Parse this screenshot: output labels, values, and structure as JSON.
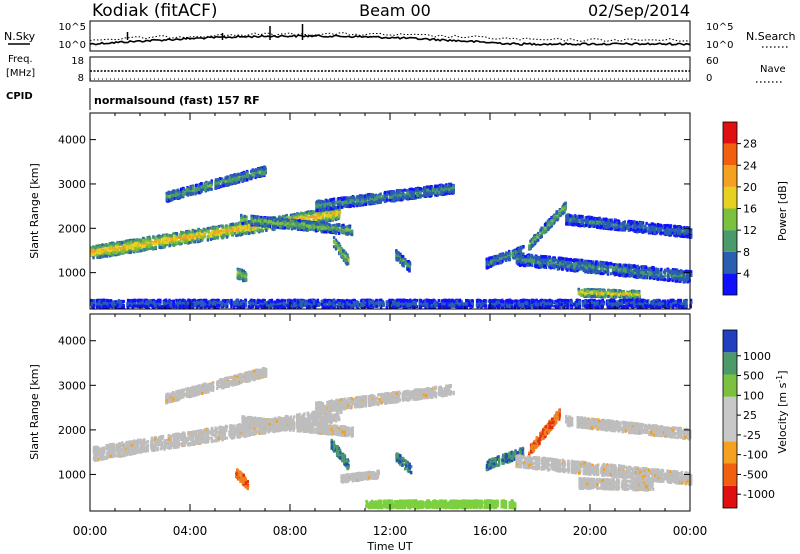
{
  "header": {
    "station": "Kodiak (fitACF)",
    "beam": "Beam 00",
    "date": "02/Sep/2014"
  },
  "noise_strip": {
    "left_label": "N.Sky",
    "right_label": "N.Search",
    "left_ticks": [
      "10^5",
      "10^0"
    ],
    "right_ticks": [
      "10^5",
      "10^0"
    ]
  },
  "freq_strip": {
    "left_label_1": "Freq.",
    "left_label_2": "[MHz]",
    "right_label": "Nave",
    "left_ticks": [
      "18",
      "8"
    ],
    "right_ticks": [
      "60",
      "0"
    ]
  },
  "cpid_strip": {
    "label": "CPID",
    "text": "normalsound (fast) 157 RF"
  },
  "colors": {
    "power_scale": [
      "#1010ff",
      "#2a5fb0",
      "#4a9a6a",
      "#7cc040",
      "#e8d020",
      "#f4a020",
      "#f06010",
      "#e01010"
    ],
    "velocity_scale": [
      "#e01010",
      "#f06010",
      "#f4a020",
      "#c8c8c8",
      "#c8c8c8",
      "#7cc040",
      "#4a9a6a",
      "#2040c0"
    ],
    "ground_scatter": "#bdbdbd"
  },
  "chart_data": [
    {
      "type": "heatmap",
      "panel": "power",
      "ylabel": "Slant Range [km]",
      "xlabel": "Time UT",
      "x_ticks": [
        "00:00",
        "04:00",
        "08:00",
        "12:00",
        "16:00",
        "20:00",
        "00:00"
      ],
      "x_range_hours": [
        0,
        24
      ],
      "y_ticks": [
        1000,
        2000,
        3000,
        4000
      ],
      "ylim": [
        180,
        4600
      ],
      "colorbar_label": "Power [dB]",
      "colorbar_ticks": [
        "28",
        "24",
        "20",
        "16",
        "12",
        "8",
        "4"
      ],
      "colorbar_range": [
        0,
        32
      ],
      "features": [
        {
          "t0": 0.0,
          "t1": 10.0,
          "r0": 1450,
          "r1": 2350,
          "width": 280,
          "level": 22
        },
        {
          "t0": 3.0,
          "t1": 7.0,
          "r0": 2700,
          "r1": 3300,
          "width": 200,
          "level": 12
        },
        {
          "t0": 9.0,
          "t1": 14.5,
          "r0": 2500,
          "r1": 2900,
          "width": 220,
          "level": 10
        },
        {
          "t0": 6.0,
          "t1": 10.5,
          "r0": 2200,
          "r1": 1950,
          "width": 200,
          "level": 14
        },
        {
          "t0": 5.8,
          "t1": 6.2,
          "r0": 1000,
          "r1": 900,
          "width": 220,
          "level": 16
        },
        {
          "t0": 9.7,
          "t1": 10.3,
          "r0": 1700,
          "r1": 1250,
          "width": 220,
          "level": 16
        },
        {
          "t0": 12.2,
          "t1": 12.8,
          "r0": 1400,
          "r1": 1100,
          "width": 200,
          "level": 12
        },
        {
          "t0": 15.8,
          "t1": 17.3,
          "r0": 1200,
          "r1": 1500,
          "width": 200,
          "level": 10
        },
        {
          "t0": 17.5,
          "t1": 19.0,
          "r0": 1600,
          "r1": 2500,
          "width": 200,
          "level": 14
        },
        {
          "t0": 17.0,
          "t1": 24.0,
          "r0": 1300,
          "r1": 900,
          "width": 260,
          "level": 9
        },
        {
          "t0": 19.0,
          "t1": 24.0,
          "r0": 2200,
          "r1": 1900,
          "width": 220,
          "level": 8
        },
        {
          "t0": 19.5,
          "t1": 22.0,
          "r0": 550,
          "r1": 500,
          "width": 160,
          "level": 20
        },
        {
          "t0": 0.0,
          "t1": 24.0,
          "r0": 300,
          "r1": 300,
          "width": 160,
          "level": 6
        }
      ]
    },
    {
      "type": "heatmap",
      "panel": "velocity",
      "ylabel": "Slant Range [km]",
      "xlabel": "Time UT",
      "x_ticks": [
        "00:00",
        "04:00",
        "08:00",
        "12:00",
        "16:00",
        "20:00",
        "00:00"
      ],
      "x_range_hours": [
        0,
        24
      ],
      "y_ticks": [
        1000,
        2000,
        3000,
        4000
      ],
      "ylim": [
        180,
        4600
      ],
      "colorbar_label": "Velocity [m s^-1]",
      "colorbar_ticks": [
        "1000",
        "500",
        "100",
        "25",
        "-25",
        "-100",
        "-500",
        "-1000"
      ],
      "features": [
        {
          "t0": 0.0,
          "t1": 10.0,
          "r0": 1450,
          "r1": 2350,
          "width": 300,
          "kind": "ground"
        },
        {
          "t0": 3.0,
          "t1": 7.0,
          "r0": 2700,
          "r1": 3300,
          "width": 200,
          "kind": "ground"
        },
        {
          "t0": 9.0,
          "t1": 14.5,
          "r0": 2500,
          "r1": 2900,
          "width": 220,
          "kind": "ground"
        },
        {
          "t0": 6.0,
          "t1": 10.5,
          "r0": 2200,
          "r1": 1950,
          "width": 200,
          "kind": "ground"
        },
        {
          "t0": 5.8,
          "t1": 6.3,
          "r0": 1050,
          "r1": 750,
          "width": 220,
          "kind": "neg"
        },
        {
          "t0": 9.6,
          "t1": 10.3,
          "r0": 1700,
          "r1": 1200,
          "width": 220,
          "kind": "pos"
        },
        {
          "t0": 10.0,
          "t1": 11.5,
          "r0": 900,
          "r1": 1000,
          "width": 160,
          "kind": "ground"
        },
        {
          "t0": 12.2,
          "t1": 12.8,
          "r0": 1400,
          "r1": 1100,
          "width": 200,
          "kind": "pos"
        },
        {
          "t0": 15.8,
          "t1": 17.3,
          "r0": 1200,
          "r1": 1500,
          "width": 200,
          "kind": "pos"
        },
        {
          "t0": 17.5,
          "t1": 18.8,
          "r0": 1500,
          "r1": 2400,
          "width": 220,
          "kind": "neg"
        },
        {
          "t0": 17.0,
          "t1": 24.0,
          "r0": 1300,
          "r1": 900,
          "width": 260,
          "kind": "ground"
        },
        {
          "t0": 19.0,
          "t1": 24.0,
          "r0": 2200,
          "r1": 1900,
          "width": 220,
          "kind": "ground"
        },
        {
          "t0": 19.5,
          "t1": 22.5,
          "r0": 800,
          "r1": 750,
          "width": 220,
          "kind": "ground"
        },
        {
          "t0": 11.0,
          "t1": 17.0,
          "r0": 330,
          "r1": 330,
          "width": 160,
          "kind": "green"
        }
      ]
    }
  ],
  "xaxis_label": "Time UT"
}
